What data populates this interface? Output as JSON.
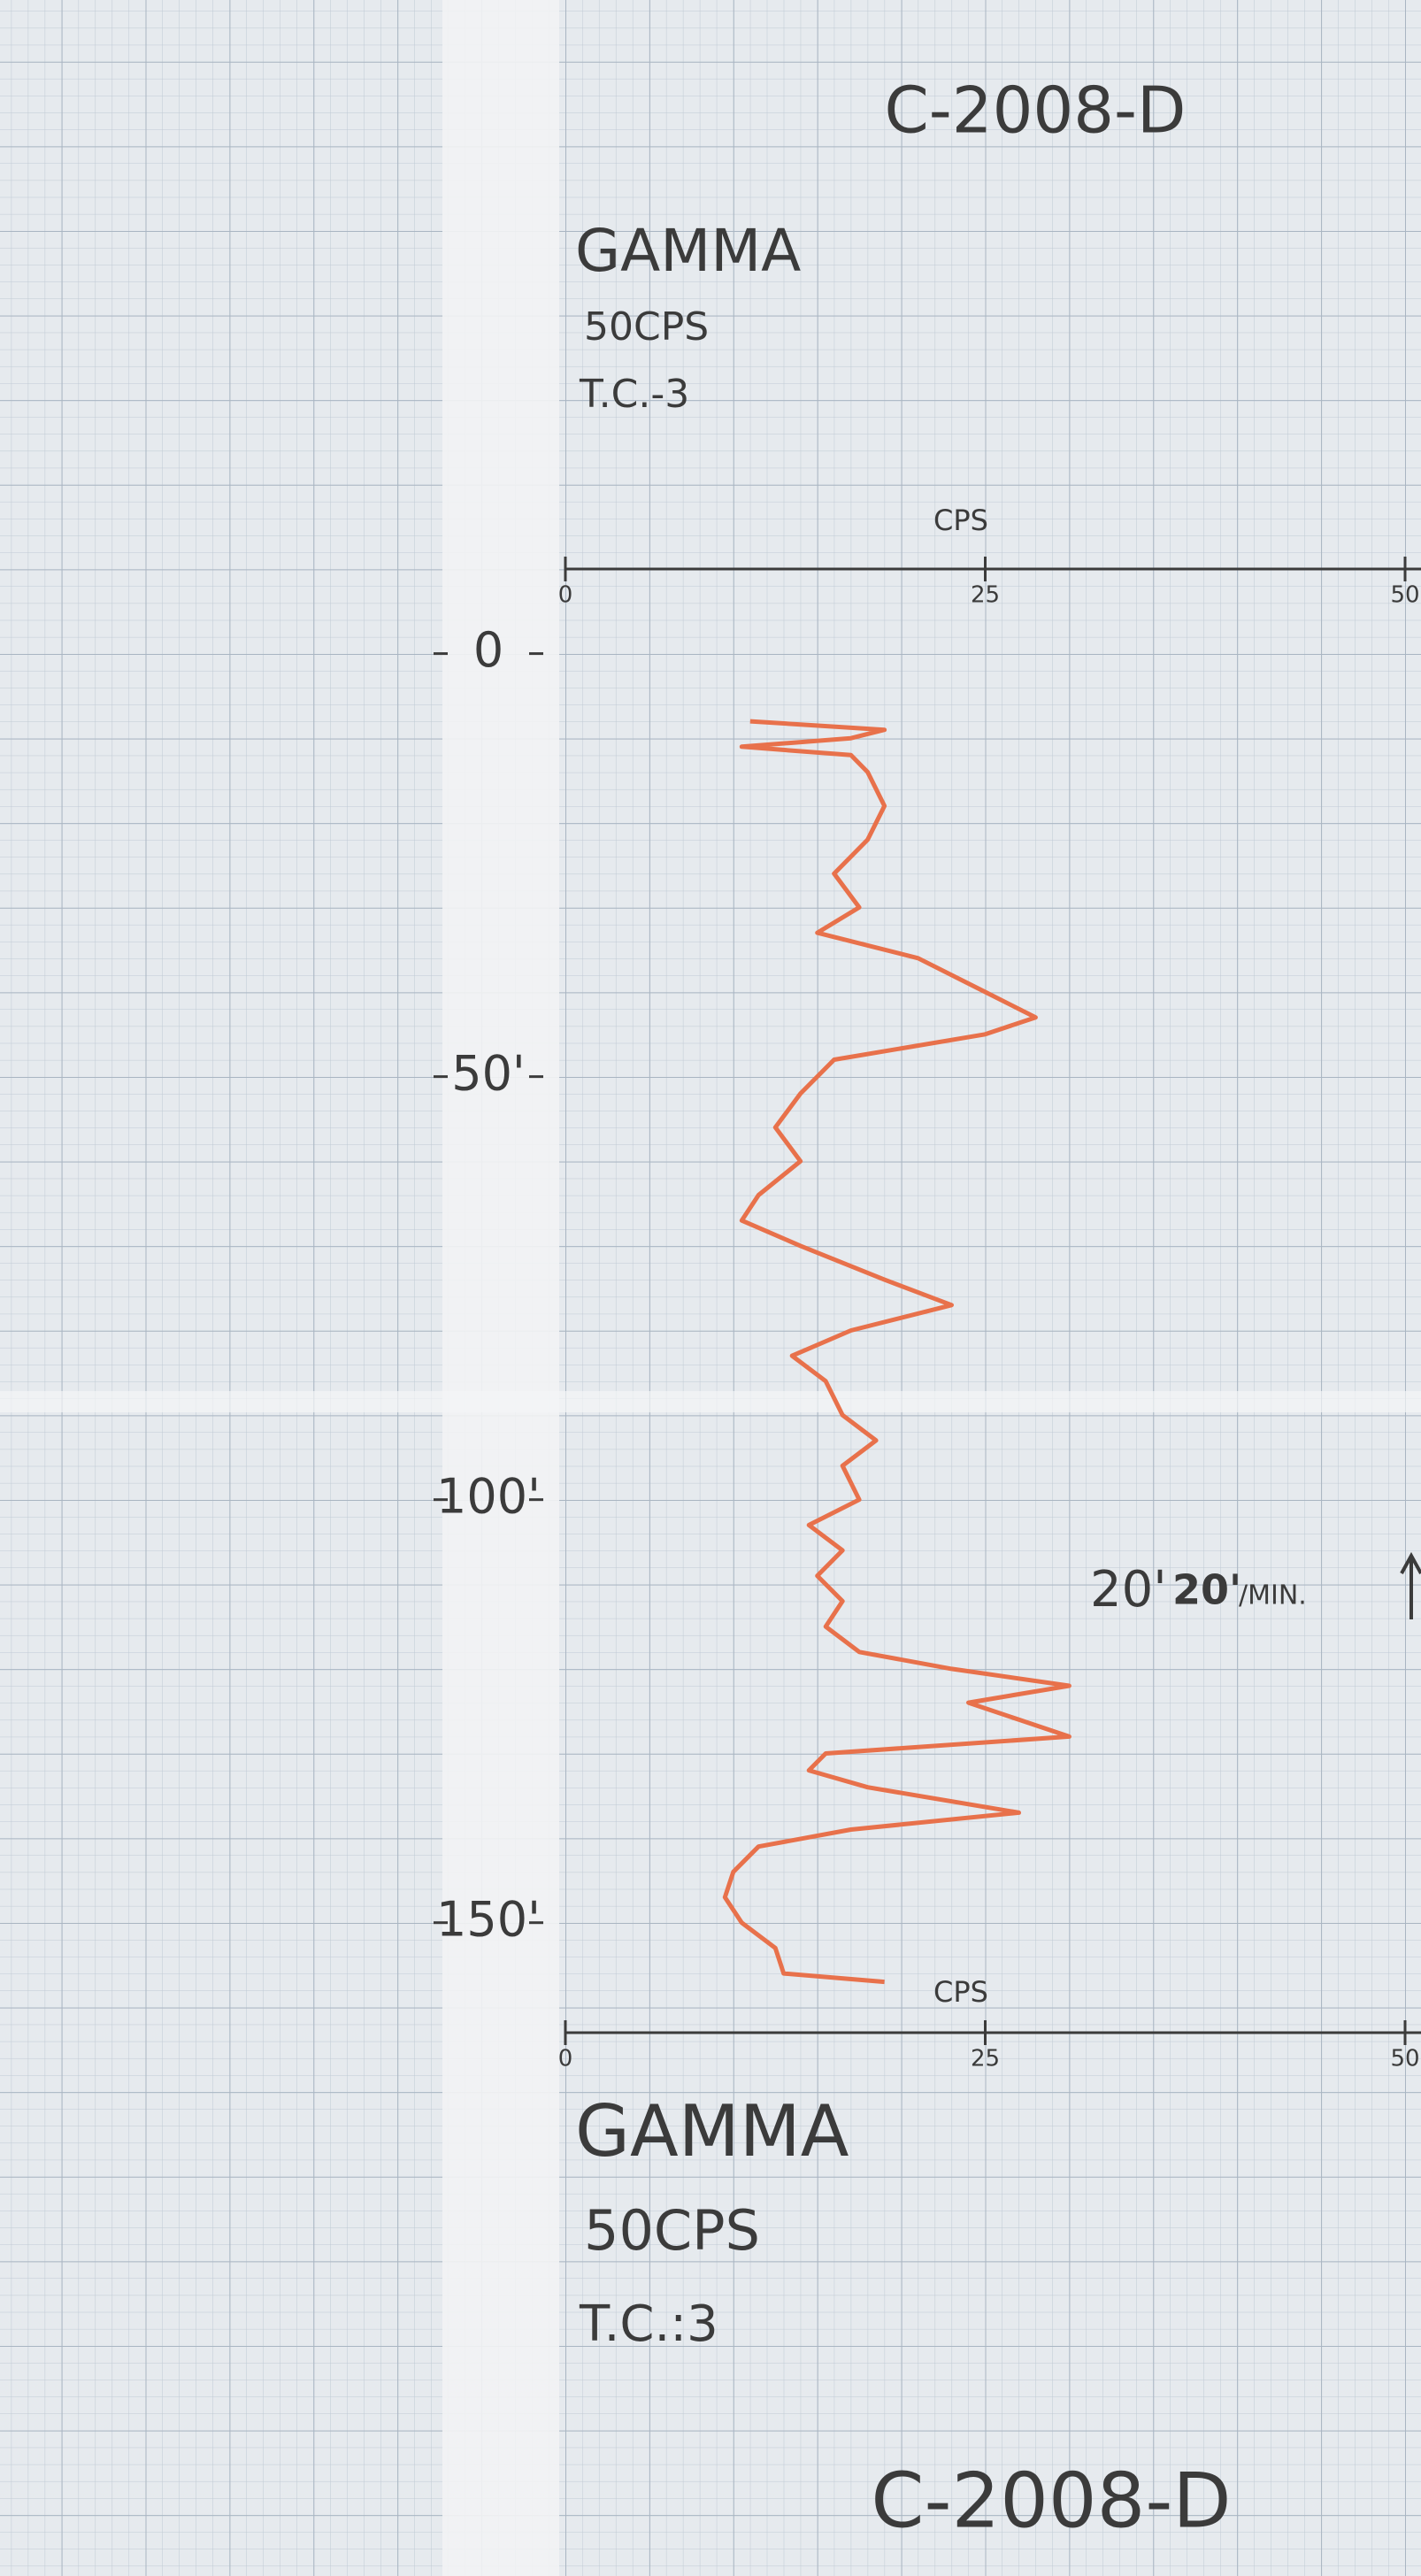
{
  "chart_data": {
    "type": "line",
    "title": "C-2008-D",
    "subtitle": [
      "GAMMA",
      "50CPS",
      "T.C.-3"
    ],
    "footer_title": "C-2008-D",
    "footer_subtitle": [
      "GAMMA",
      "50CPS",
      "T.C.:3"
    ],
    "xlabel": "CPS",
    "xlim": [
      0,
      50
    ],
    "xticks": [
      0,
      25,
      50
    ],
    "ylim": [
      -10,
      163
    ],
    "yticks": [
      {
        "value": 0,
        "label": "0"
      },
      {
        "value": 50,
        "label": "50'"
      },
      {
        "value": 100,
        "label": "100'"
      },
      {
        "value": 150,
        "label": "150'"
      }
    ],
    "depth": [
      8,
      9,
      10,
      11,
      12,
      14,
      18,
      22,
      26,
      30,
      33,
      36,
      40,
      43,
      45,
      48,
      52,
      56,
      60,
      64,
      67,
      70,
      74,
      77,
      80,
      83,
      86,
      90,
      93,
      96,
      100,
      103,
      106,
      109,
      112,
      115,
      118,
      120,
      122,
      124,
      126,
      128,
      130,
      132,
      134,
      137,
      139,
      141,
      144,
      147,
      150,
      153,
      156,
      157
    ],
    "values": [
      11,
      19,
      17,
      10.5,
      17,
      18,
      19,
      18,
      16,
      17.5,
      15,
      21,
      25,
      28,
      25,
      16,
      14,
      12.5,
      14,
      11.5,
      10.5,
      14,
      19,
      23,
      17,
      13.5,
      15.5,
      16.5,
      18.5,
      16.5,
      17.5,
      14.5,
      16.5,
      15,
      16.5,
      15.5,
      17.5,
      23,
      30,
      24,
      27,
      30,
      15.5,
      14.5,
      18,
      27,
      17,
      11.5,
      10,
      9.5,
      10.5,
      12.5,
      13,
      19
    ],
    "color": "#e8714b",
    "annotation": {
      "rate": "20'",
      "struck": "20'",
      "unit": "/MIN."
    }
  }
}
